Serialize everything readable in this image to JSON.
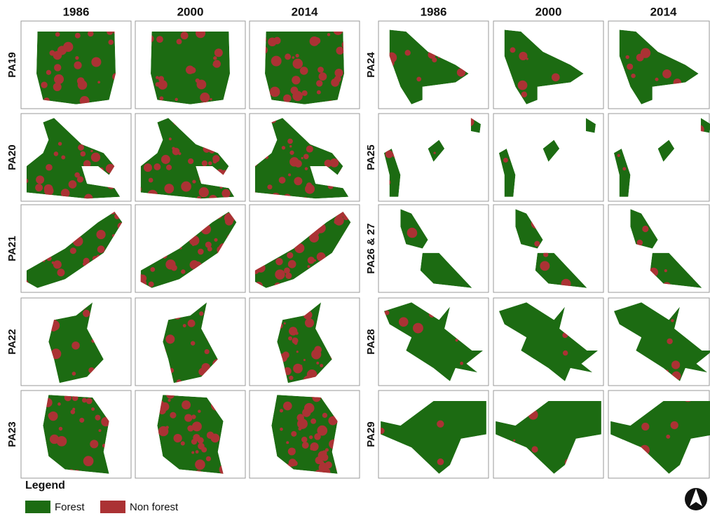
{
  "left": {
    "years": [
      "1986",
      "2000",
      "2014"
    ],
    "rows": [
      "PA19",
      "PA20",
      "PA21",
      "PA22",
      "PA23"
    ]
  },
  "right": {
    "years": [
      "1986",
      "2000",
      "2014"
    ],
    "rows": [
      "PA24",
      "PA25",
      "PA26 & 27",
      "PA28",
      "PA29"
    ]
  },
  "legend": {
    "title": "Legend",
    "items": [
      "Forest",
      "Non forest"
    ]
  }
}
